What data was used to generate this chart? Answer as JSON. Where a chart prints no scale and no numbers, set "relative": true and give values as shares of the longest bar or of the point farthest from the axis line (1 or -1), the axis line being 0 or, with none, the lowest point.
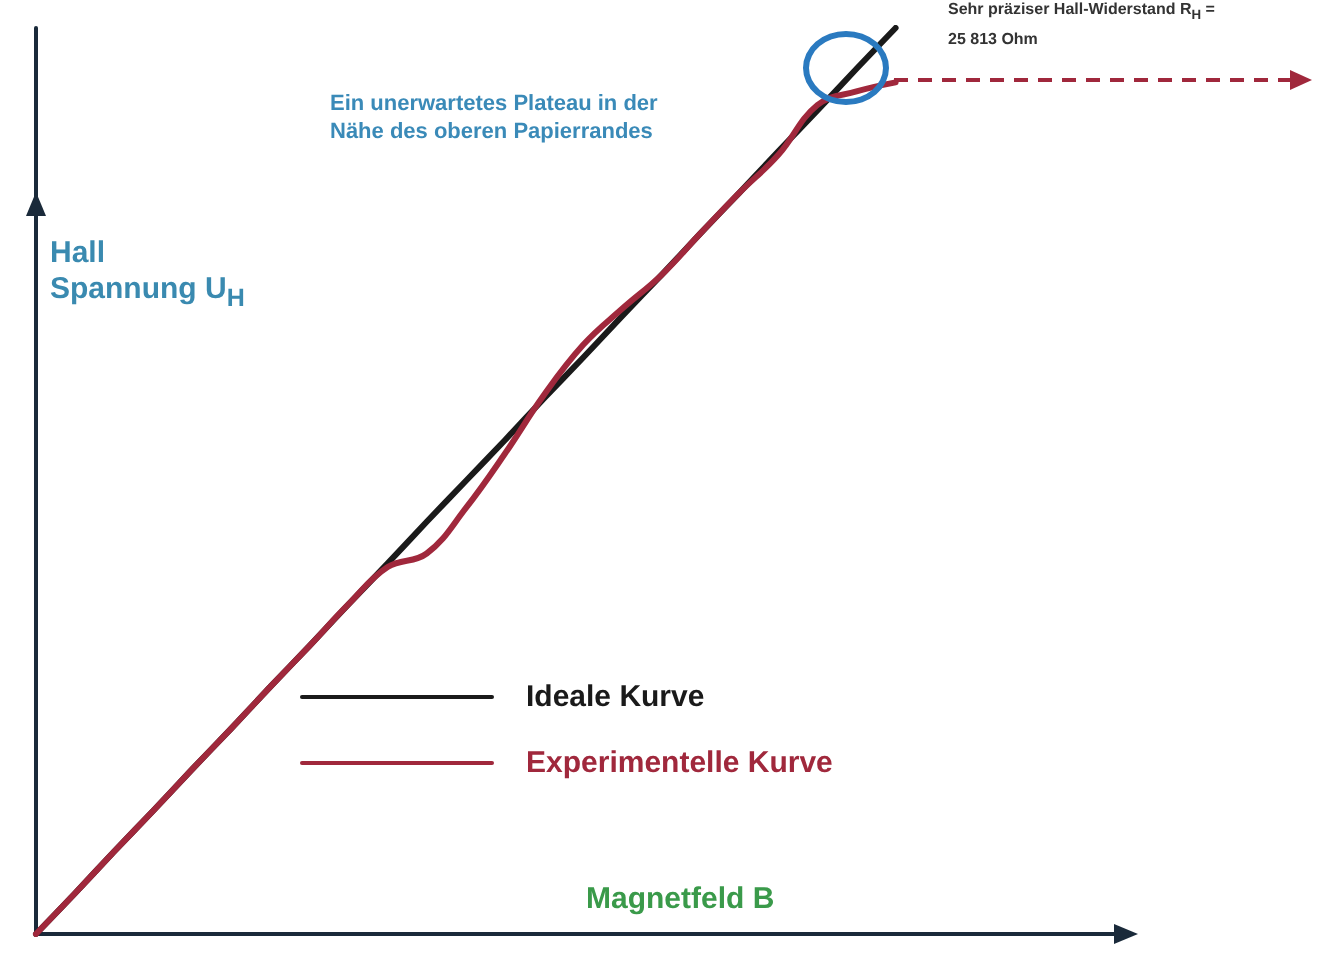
{
  "chart_data": {
    "type": "line",
    "relative": true,
    "xlabel": "Magnetfeld B",
    "ylabel": "Hall Spannung U$_{H}$",
    "categories": [
      null,
      null,
      null,
      null,
      null,
      null,
      null,
      null,
      null,
      null,
      null,
      null,
      null,
      null,
      null,
      null,
      null,
      null,
      null,
      null,
      null,
      null,
      null,
      null,
      null,
      null,
      null,
      null,
      null
    ],
    "series": [
      {
        "name": "Ideale Kurve",
        "color": "#1a1a1a",
        "values": [
          0,
          0.045,
          0.091,
          0.136,
          0.182,
          0.227,
          0.273,
          0.318,
          0.364,
          0.409,
          0.455,
          0.5,
          0.545,
          0.591,
          0.636,
          0.682,
          0.727,
          0.773,
          0.818,
          0.864,
          0.909,
          0.955,
          1,
          null,
          null,
          null,
          null,
          null,
          null
        ]
      },
      {
        "name": "Experimentelle Kurve",
        "color": "#a0283c",
        "values": [
          0,
          0.045,
          0.091,
          0.136,
          0.182,
          0.227,
          0.273,
          0.318,
          0.364,
          0.405,
          0.42,
          0.47,
          0.53,
          0.595,
          0.65,
          0.69,
          0.727,
          0.773,
          0.818,
          0.86,
          0.915,
          0.93,
          0.94,
          null,
          null,
          null,
          null,
          null,
          null
        ]
      }
    ],
    "legend": "bottom",
    "grid": false,
    "marker": "none",
    "line_style": "solid",
    "annotations": [
      "Ein unerwartetes Plateau in der Nähe des oberen Papierrandes",
      "Sehr präziser Hall-Widerstand R$_{H}$ = 25 813 Ohm"
    ]
  }
}
